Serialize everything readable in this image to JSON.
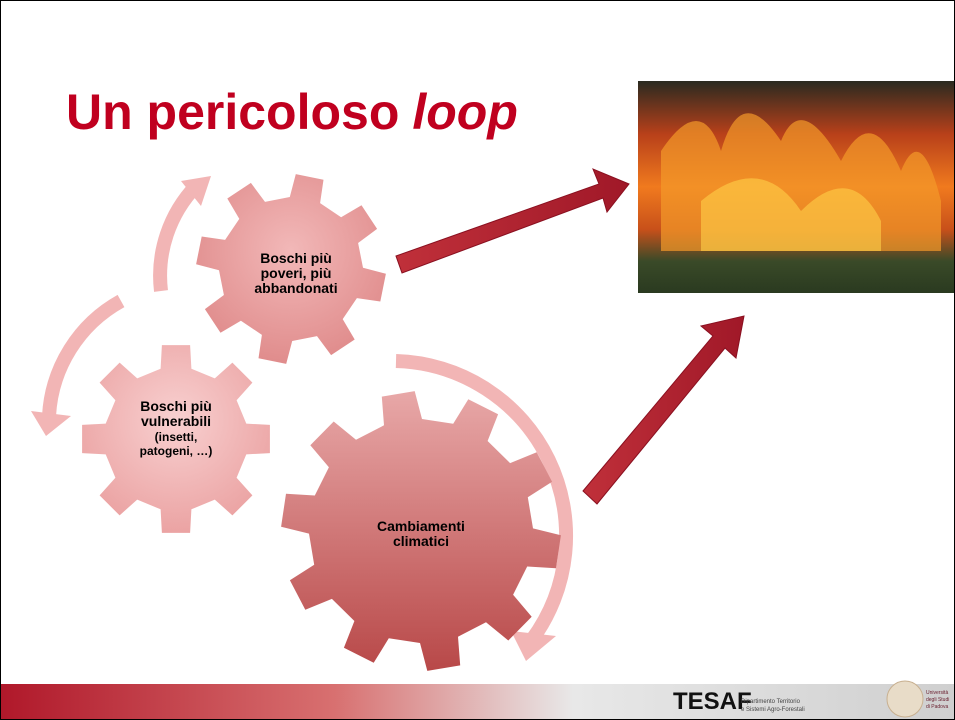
{
  "title": {
    "text": "Un pericoloso",
    "emphasis": "loop"
  },
  "gears": [
    {
      "lines": [
        "Boschi più",
        "poveri, più",
        "abbandonati"
      ]
    },
    {
      "lines": [
        "Boschi più",
        "vulnerabili"
      ],
      "sublines": [
        "(insetti,",
        "patogeni, …)"
      ]
    },
    {
      "lines": [
        "Cambiamenti",
        "climatici"
      ]
    }
  ],
  "footer": {
    "logo": "TESAF",
    "department": [
      "Dipartimento Territorio",
      "e Sistemi Agro-Forestali"
    ],
    "university": [
      "Università",
      "degli Studi",
      "di Padova"
    ]
  }
}
